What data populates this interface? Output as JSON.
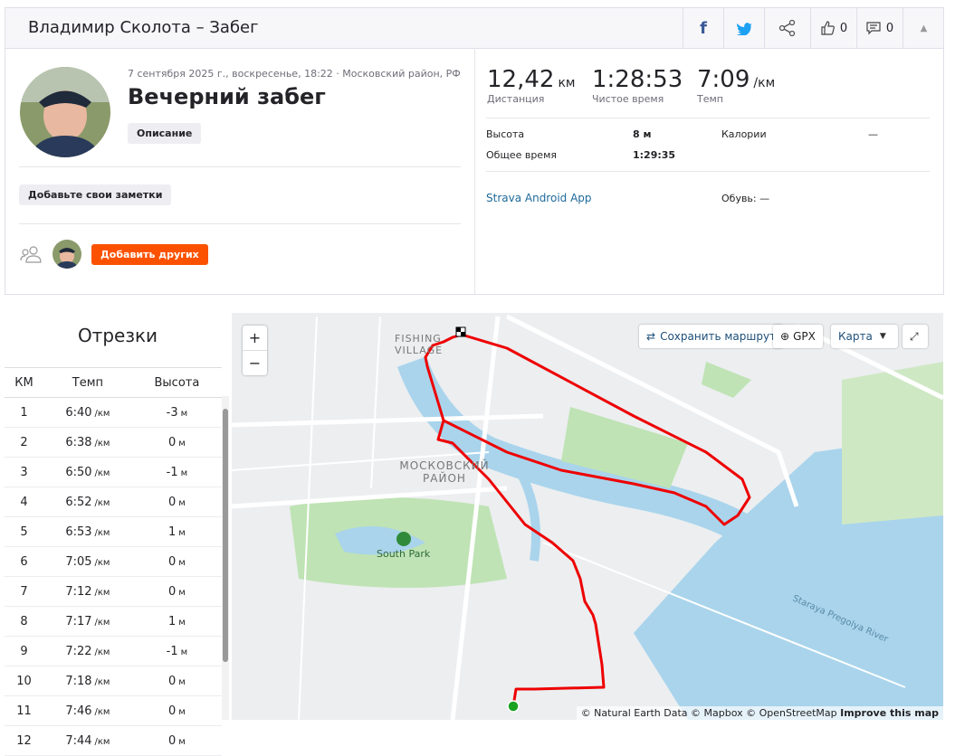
{
  "header": {
    "title": "Владимир Сколота – Забег",
    "likes": "0",
    "comments": "0"
  },
  "activity": {
    "date": "7 сентября 2025 г., воскресенье, 18:22 · Московский район, РФ",
    "name": "Вечерний забег",
    "description_button": "Описание",
    "notes_button": "Добавьте свои заметки",
    "add_others_button": "Добавить других"
  },
  "stats": {
    "primary": [
      {
        "value": "12,42",
        "unit": "км",
        "label": "Дистанция"
      },
      {
        "value": "1:28:53",
        "label": "Чистое время"
      },
      {
        "value": "7:09",
        "unit": "/км",
        "label": "Темп"
      }
    ],
    "elevation_label": "Высота",
    "elevation": "8 м",
    "calories_label": "Калории",
    "calories": "—",
    "elapsed_label": "Общее время",
    "elapsed": "1:29:35",
    "device": "Strava Android App",
    "shoes": "Обувь: —"
  },
  "splits": {
    "title": "Отрезки",
    "headers": [
      "КМ",
      "Темп",
      "Высота"
    ],
    "pace_unit": "/км",
    "elev_unit": "м",
    "rows": [
      [
        "1",
        "6:40",
        "-3"
      ],
      [
        "2",
        "6:38",
        "0"
      ],
      [
        "3",
        "6:50",
        "-1"
      ],
      [
        "4",
        "6:52",
        "0"
      ],
      [
        "5",
        "6:53",
        "1"
      ],
      [
        "6",
        "7:05",
        "0"
      ],
      [
        "7",
        "7:12",
        "0"
      ],
      [
        "8",
        "7:17",
        "1"
      ],
      [
        "9",
        "7:22",
        "-1"
      ],
      [
        "10",
        "7:18",
        "0"
      ],
      [
        "11",
        "7:46",
        "0"
      ],
      [
        "12",
        "7:44",
        "0"
      ]
    ]
  },
  "map": {
    "zoom_in": "+",
    "zoom_out": "−",
    "save_route": "Сохранить маршрут",
    "gpx": "GPX",
    "map_type": "Карта",
    "labels": {
      "fishing_village": "FISHING VILLAGE",
      "district": "МОСКОВСКИЙ РАЙОН",
      "park": "South Park",
      "river": "Staraya Pregolya River"
    },
    "attribution": "© Natural Earth Data © Mapbox © OpenStreetMap",
    "improve": "Improve this map"
  }
}
